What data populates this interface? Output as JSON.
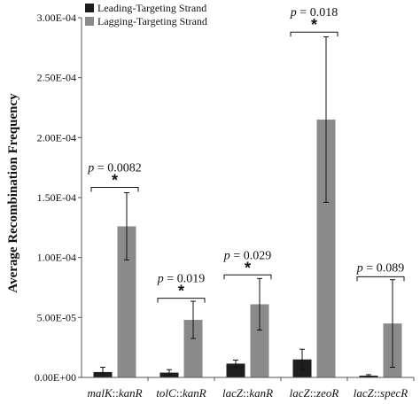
{
  "chart_data": {
    "type": "bar",
    "ylabel": "Average Recombination Frequency",
    "ylim": [
      0,
      0.0003
    ],
    "yticks": [
      0,
      5e-05,
      0.0001,
      0.00015,
      0.0002,
      0.00025,
      0.0003
    ],
    "ytick_labels": [
      "0.00E+00",
      "5.00E-05",
      "1.00E-04",
      "1.50E-04",
      "2.00E-04",
      "2.50E-04",
      "3.00E-04"
    ],
    "legend_position": "top-left",
    "categories": [
      {
        "prefix": "malK",
        "suffix": "kanR",
        "label": "malK::kanR"
      },
      {
        "prefix": "tolC",
        "suffix": "kanR",
        "label": "tolC::kanR"
      },
      {
        "prefix": "lacZ",
        "suffix": "kanR",
        "label": "lacZ::kanR"
      },
      {
        "prefix": "lacZ",
        "suffix": "zeoR",
        "label": "lacZ::zeoR"
      },
      {
        "prefix": "lacZ",
        "suffix": "specR",
        "label": "lacZ::specR"
      }
    ],
    "series": [
      {
        "name": "Leading-Targeting Strand",
        "color": "#1e1e1e",
        "values": [
          4.5e-06,
          4e-06,
          1.15e-05,
          1.5e-05,
          1.5e-06
        ],
        "errors": [
          4e-06,
          2.5e-06,
          3e-06,
          8.5e-06,
          8e-07
        ]
      },
      {
        "name": "Lagging-Targeting Strand",
        "color": "#8a8a8a",
        "values": [
          0.000126,
          4.8e-05,
          6.1e-05,
          0.000215,
          4.5e-05
        ],
        "errors": [
          2.8e-05,
          1.55e-05,
          2.15e-05,
          6.9e-05,
          3.65e-05
        ]
      }
    ],
    "annotations": [
      {
        "category": 0,
        "p_var": "p",
        "p_value": "= 0.0082",
        "star": "*",
        "bracket_y": 0.0001585
      },
      {
        "category": 1,
        "p_var": "p",
        "p_value": "= 0.019",
        "star": "*",
        "bracket_y": 6.6e-05
      },
      {
        "category": 2,
        "p_var": "p",
        "p_value": "= 0.029",
        "star": "*",
        "bracket_y": 8.55e-05
      },
      {
        "category": 3,
        "p_var": "p",
        "p_value": "= 0.018",
        "star": "*",
        "bracket_y": 0.000288
      },
      {
        "category": 4,
        "p_var": "p",
        "p_value": "= 0.089",
        "star": "",
        "bracket_y": 8.4e-05
      }
    ]
  }
}
